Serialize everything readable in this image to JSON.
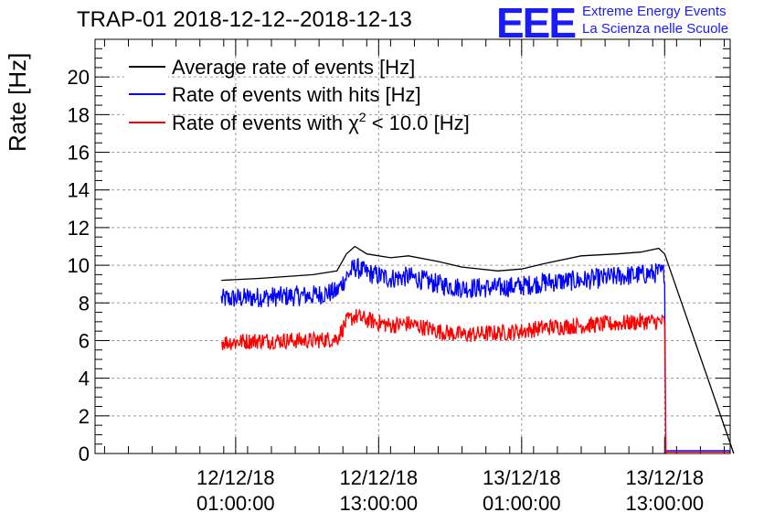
{
  "header": {
    "title": "TRAP-01 2018-12-12--2018-12-13",
    "logo_text": "EEE",
    "brand_line1": "Extreme Energy Events",
    "brand_line2": "La Scienza nelle Scuole"
  },
  "colors": {
    "average": "#000000",
    "hits": "#0000ff",
    "chi2": "#ff0000",
    "grid": "#9a9a9a",
    "brand": "#1a1aff"
  },
  "chart_data": {
    "type": "line",
    "title": "TRAP-01 2018-12-12--2018-12-13",
    "xlabel": "",
    "ylabel": "Rate [Hz]",
    "xunit": "hours since 12/12/18 00:00",
    "xlim": [
      -10.8,
      42.5
    ],
    "ylim": [
      0,
      22
    ],
    "grid": true,
    "legend_position": "top-left",
    "yticks": [
      0,
      2,
      4,
      6,
      8,
      10,
      12,
      14,
      16,
      18,
      20
    ],
    "xticks": [
      {
        "x": 1,
        "line1": "12/12/18",
        "line2": "01:00:00"
      },
      {
        "x": 13,
        "line1": "12/12/18",
        "line2": "13:00:00"
      },
      {
        "x": 25,
        "line1": "13/12/18",
        "line2": "01:00:00"
      },
      {
        "x": 37,
        "line1": "13/12/18",
        "line2": "13:00:00"
      }
    ],
    "series": [
      {
        "name": "Average rate of events [Hz]",
        "label_prefix": "Average rate of events [Hz]",
        "color": "#000000",
        "x": [
          -0.2,
          3,
          7.5,
          9.5,
          10.3,
          11,
          12,
          14,
          15.5,
          18,
          20,
          23,
          25,
          27,
          30,
          33,
          35,
          36.5,
          37
        ],
        "y": [
          9.2,
          9.3,
          9.5,
          9.7,
          10.6,
          11.0,
          10.6,
          10.4,
          10.5,
          10.2,
          9.9,
          9.7,
          9.8,
          10.1,
          10.5,
          10.6,
          10.7,
          10.9,
          10.6
        ],
        "tail": {
          "x": [
            37,
            42.8
          ],
          "y": [
            10.6,
            0.0
          ]
        }
      },
      {
        "name": "Rate of events with hits [Hz]",
        "label_prefix": "Rate of events with hits [Hz]",
        "color": "#0000ff",
        "x": [
          -0.2,
          3,
          7.5,
          9.5,
          10.3,
          11,
          12,
          14,
          15.5,
          18,
          20,
          23,
          25,
          27,
          30,
          33,
          35,
          36.5,
          37
        ],
        "y": [
          8.2,
          8.3,
          8.4,
          8.6,
          9.4,
          9.9,
          9.6,
          9.3,
          9.4,
          9.0,
          8.8,
          8.8,
          8.9,
          9.1,
          9.2,
          9.4,
          9.5,
          9.6,
          9.6
        ],
        "noise": 0.55,
        "tail": {
          "x": [
            37.1,
            37.1,
            42.5
          ],
          "y": [
            0.0,
            0.15,
            0.15
          ]
        }
      },
      {
        "name": "Rate of events with χ² < 10.0 [Hz]",
        "label_prefix": "Rate of events with ",
        "label_chi": "χ",
        "label_sup": "2",
        "label_suffix": " < 10.0 [Hz]",
        "color": "#ff0000",
        "x": [
          -0.2,
          3,
          7.5,
          9.5,
          10.3,
          11,
          12,
          14,
          15.5,
          18,
          20,
          23,
          25,
          27,
          30,
          33,
          35,
          36.5,
          37
        ],
        "y": [
          5.9,
          6.0,
          6.0,
          6.1,
          7.0,
          7.3,
          7.1,
          6.8,
          6.9,
          6.5,
          6.3,
          6.4,
          6.5,
          6.7,
          6.8,
          6.9,
          7.0,
          7.0,
          7.0
        ],
        "noise": 0.45,
        "tail": {
          "x": [
            37.1,
            37.1,
            42.5
          ],
          "y": [
            0.0,
            0.08,
            0.08
          ]
        }
      }
    ]
  }
}
